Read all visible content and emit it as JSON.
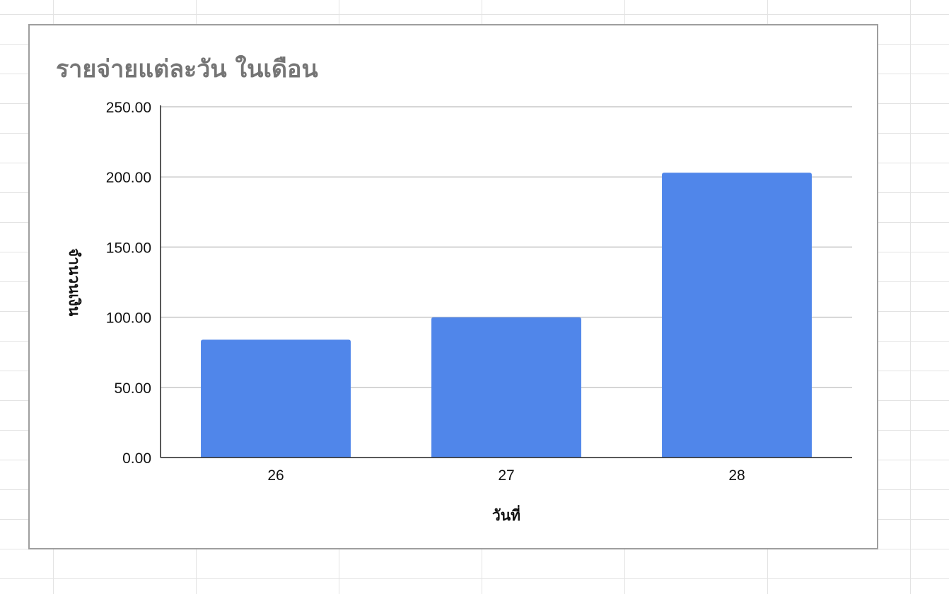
{
  "chart_data": {
    "type": "bar",
    "title": "รายจ่ายแต่ละวัน ในเดือน",
    "xlabel": "วันที่",
    "ylabel": "จำนวนเงิน",
    "categories": [
      "26",
      "27",
      "28"
    ],
    "values": [
      84,
      100,
      203
    ],
    "ylim": [
      0,
      250
    ],
    "yticks": [
      "0.00",
      "50.00",
      "100.00",
      "150.00",
      "200.00",
      "250.00"
    ],
    "grid": true,
    "legend": "none",
    "bar_color": "#5086ea",
    "gridline_color": "#c8c8c8"
  }
}
